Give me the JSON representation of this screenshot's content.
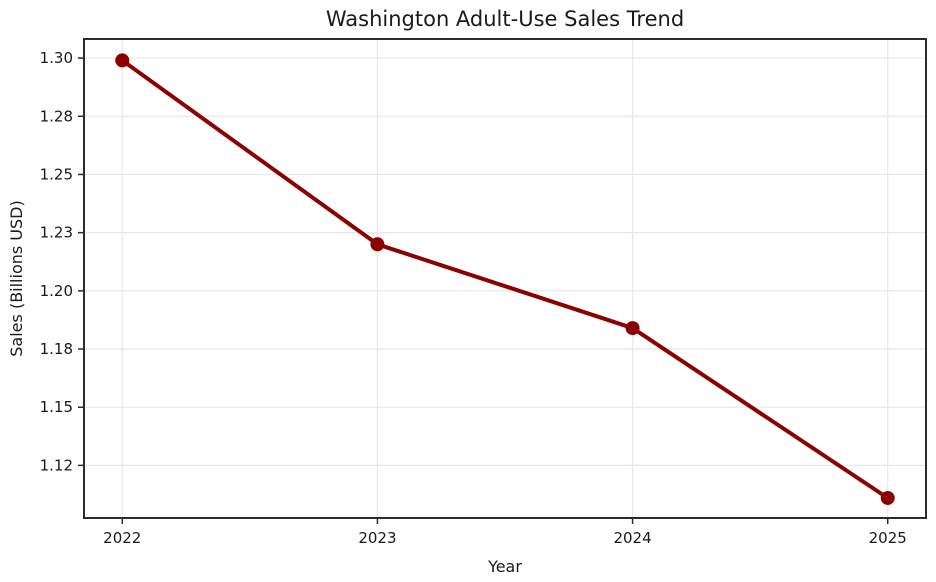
{
  "chart_data": {
    "type": "line",
    "title": "Washington Adult-Use Sales Trend",
    "xlabel": "Year",
    "ylabel": "Sales (Billions USD)",
    "x": [
      2022,
      2023,
      2024,
      2025
    ],
    "values": [
      1.299,
      1.22,
      1.184,
      1.111
    ],
    "series": [
      {
        "name": "Adult-Use Sales",
        "values": [
          1.299,
          1.22,
          1.184,
          1.111
        ]
      }
    ],
    "xlim": [
      2021.85,
      2025.15
    ],
    "ylim": [
      1.1024,
      1.3082
    ],
    "xticks": {
      "values": [
        2022,
        2023,
        2024,
        2025
      ],
      "labels": [
        "2022",
        "2023",
        "2024",
        "2025"
      ]
    },
    "yticks": {
      "values": [
        1.125,
        1.15,
        1.175,
        1.2,
        1.225,
        1.25,
        1.275,
        1.3
      ],
      "labels": [
        "1.12",
        "1.15",
        "1.18",
        "1.20",
        "1.23",
        "1.25",
        "1.28",
        "1.30"
      ]
    },
    "grid": true,
    "legend": false,
    "marker": "circle",
    "line_color": "#8b0000",
    "marker_color": "#8b0000",
    "grid_color": "#e7e7e7",
    "spine_color": "#2b2b2b",
    "tick_color": "#2b2b2b",
    "text_color": "#1a1a1a",
    "background_color": "#ffffff"
  }
}
